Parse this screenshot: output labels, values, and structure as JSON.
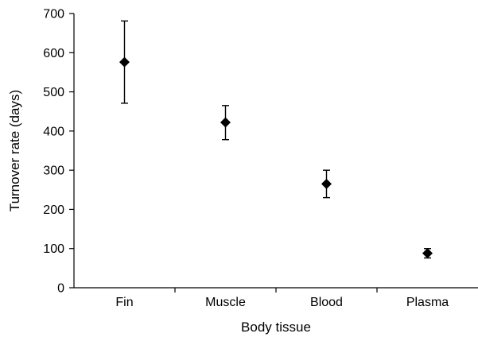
{
  "chart_data": {
    "type": "scatter",
    "title": "",
    "xlabel": "Body tissue",
    "ylabel": "Turnover rate (days)",
    "categories": [
      "Fin",
      "Muscle",
      "Blood",
      "Plasma"
    ],
    "values": [
      576,
      422,
      265,
      88
    ],
    "error_low": [
      471,
      378,
      230,
      76
    ],
    "error_high": [
      681,
      465,
      300,
      100
    ],
    "ylim": [
      0,
      700
    ],
    "yticks": [
      0,
      100,
      200,
      300,
      400,
      500,
      600,
      700
    ],
    "grid": false,
    "legend": "none",
    "marker": "diamond",
    "color": "#000000"
  }
}
